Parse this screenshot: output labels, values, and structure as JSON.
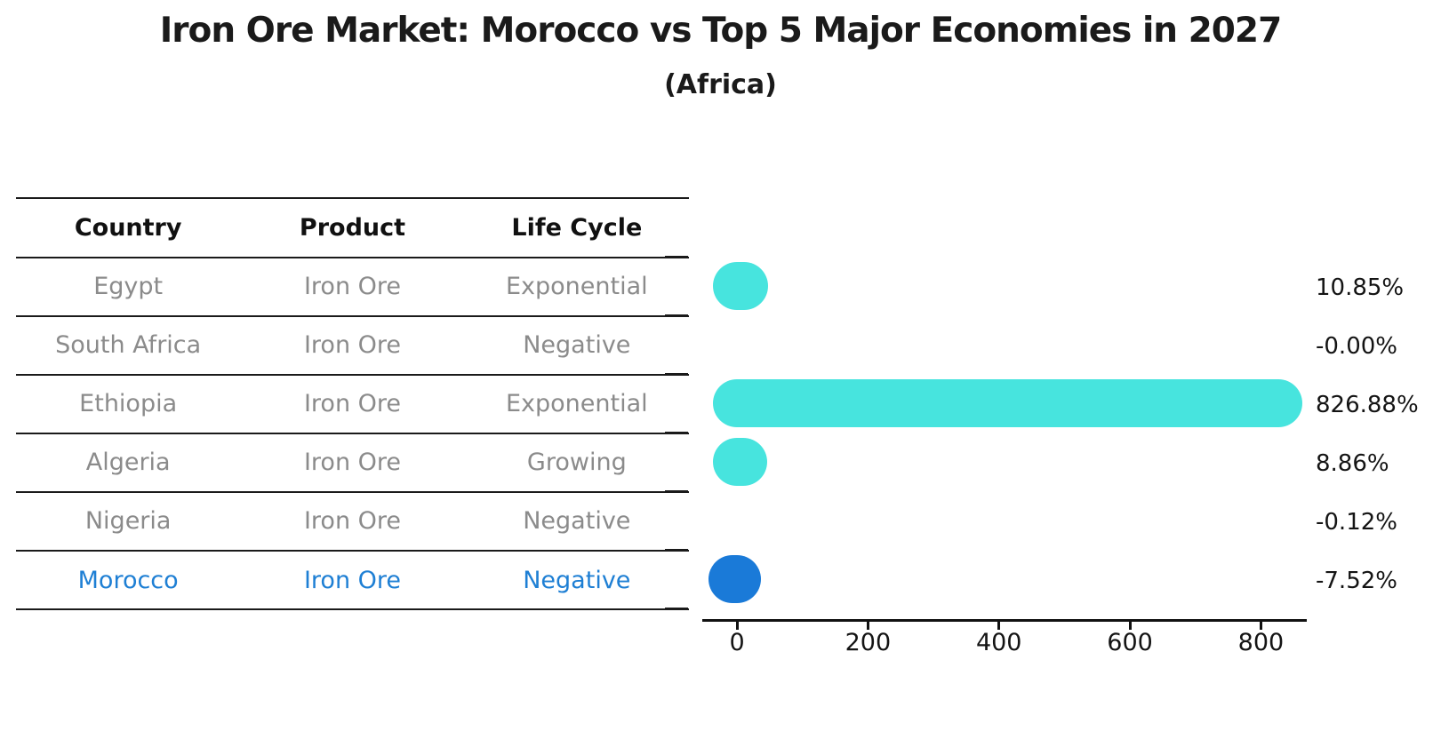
{
  "title": "Iron Ore Market: Morocco vs Top 5 Major Economies in 2027",
  "subtitle": "(Africa)",
  "table": {
    "headers": [
      "Country",
      "Product",
      "Life Cycle"
    ],
    "rows": [
      {
        "country": "Egypt",
        "product": "Iron Ore",
        "life_cycle": "Exponential",
        "highlighted": false
      },
      {
        "country": "South Africa",
        "product": "Iron Ore",
        "life_cycle": "Negative",
        "highlighted": false
      },
      {
        "country": "Ethiopia",
        "product": "Iron Ore",
        "life_cycle": "Exponential",
        "highlighted": false
      },
      {
        "country": "Algeria",
        "product": "Iron Ore",
        "life_cycle": "Growing",
        "highlighted": false
      },
      {
        "country": "Nigeria",
        "product": "Iron Ore",
        "life_cycle": "Negative",
        "highlighted": false
      },
      {
        "country": "Morocco",
        "product": "Iron Ore",
        "life_cycle": "Negative",
        "highlighted": true
      }
    ]
  },
  "chart_data": {
    "type": "bar",
    "orientation": "horizontal",
    "title": "Iron Ore Market: Morocco vs Top 5 Major Economies in 2027",
    "subtitle": "(Africa)",
    "categories": [
      "Egypt",
      "South Africa",
      "Ethiopia",
      "Algeria",
      "Nigeria",
      "Morocco"
    ],
    "values": [
      10.85,
      -0.0,
      826.88,
      8.86,
      -0.12,
      -7.52
    ],
    "value_labels": [
      "10.85%",
      "-0.00%",
      "826.88%",
      "8.86%",
      "-0.12%",
      "-7.52%"
    ],
    "x_ticks": [
      0,
      200,
      400,
      600,
      800
    ],
    "xlim": [
      -53,
      870
    ],
    "grid": false,
    "legend": false,
    "bar_color": "#47E4DE",
    "highlight_color": "#1A7AD8",
    "highlight_index": 5
  },
  "colors": {
    "title_text": "#1a1a1a",
    "cell_text": "#8b8b8b",
    "highlight_text": "#1E7FD4",
    "line": "#1a1a1a"
  }
}
